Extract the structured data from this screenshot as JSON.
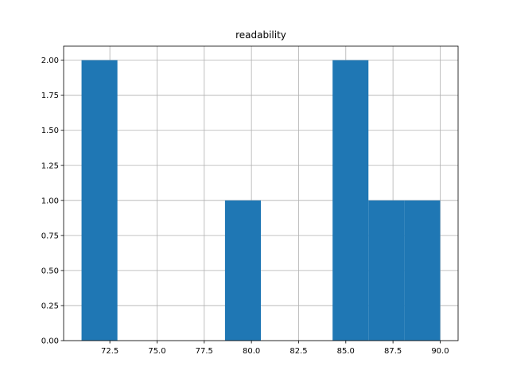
{
  "chart_data": {
    "type": "bar",
    "subtype": "histogram",
    "title": "readability",
    "xlabel": "",
    "ylabel": "",
    "grid": true,
    "bar_color": "#1f77b4",
    "bins": [
      {
        "start": 71.0,
        "end": 72.9,
        "count": 2
      },
      {
        "start": 72.9,
        "end": 74.8,
        "count": 0
      },
      {
        "start": 74.8,
        "end": 76.7,
        "count": 0
      },
      {
        "start": 76.7,
        "end": 78.6,
        "count": 0
      },
      {
        "start": 78.6,
        "end": 80.5,
        "count": 1
      },
      {
        "start": 80.5,
        "end": 82.4,
        "count": 0
      },
      {
        "start": 82.4,
        "end": 84.3,
        "count": 0
      },
      {
        "start": 84.3,
        "end": 86.2,
        "count": 2
      },
      {
        "start": 86.2,
        "end": 88.1,
        "count": 1
      },
      {
        "start": 88.1,
        "end": 90.0,
        "count": 1
      }
    ],
    "xlim": [
      70.05,
      90.95
    ],
    "ylim": [
      0,
      2.1
    ],
    "xticks": [
      "72.5",
      "75.0",
      "77.5",
      "80.0",
      "82.5",
      "85.0",
      "87.5",
      "90.0"
    ],
    "yticks": [
      "0.00",
      "0.25",
      "0.50",
      "0.75",
      "1.00",
      "1.25",
      "1.50",
      "1.75",
      "2.00"
    ]
  }
}
